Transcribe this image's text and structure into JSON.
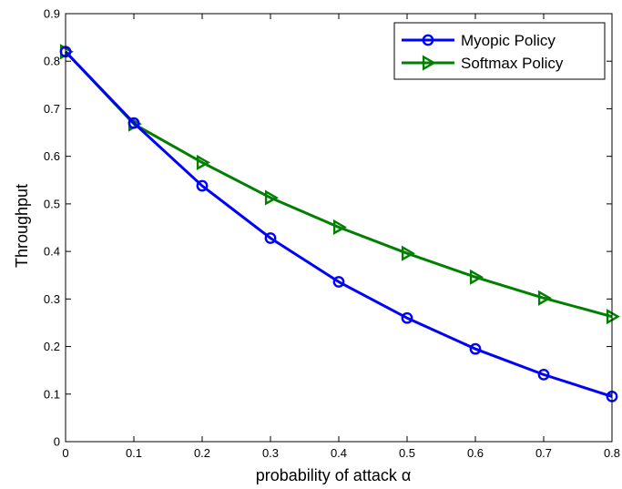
{
  "chart_data": {
    "type": "line",
    "title": "",
    "xlabel": "probability of attack α",
    "ylabel": "Throughput",
    "xlim": [
      0,
      0.8
    ],
    "ylim": [
      0,
      0.9
    ],
    "x": [
      0,
      0.1,
      0.2,
      0.3,
      0.4,
      0.5,
      0.6,
      0.7,
      0.8
    ],
    "xticks": [
      "0",
      "0.1",
      "0.2",
      "0.3",
      "0.4",
      "0.5",
      "0.6",
      "0.7",
      "0.8"
    ],
    "yticks": [
      "0",
      "0.1",
      "0.2",
      "0.3",
      "0.4",
      "0.5",
      "0.6",
      "0.7",
      "0.8",
      "0.9"
    ],
    "grid": false,
    "legend_position": "top-right",
    "series": [
      {
        "name": "Myopic Policy",
        "color": "#0000ff",
        "marker": "circle",
        "values": [
          0.82,
          0.67,
          0.538,
          0.428,
          0.336,
          0.26,
          0.195,
          0.141,
          0.095
        ]
      },
      {
        "name": "Softmax Policy",
        "color": "#007f00",
        "marker": "triangle-right",
        "values": [
          0.82,
          0.668,
          0.587,
          0.513,
          0.451,
          0.396,
          0.346,
          0.302,
          0.263
        ]
      }
    ]
  }
}
